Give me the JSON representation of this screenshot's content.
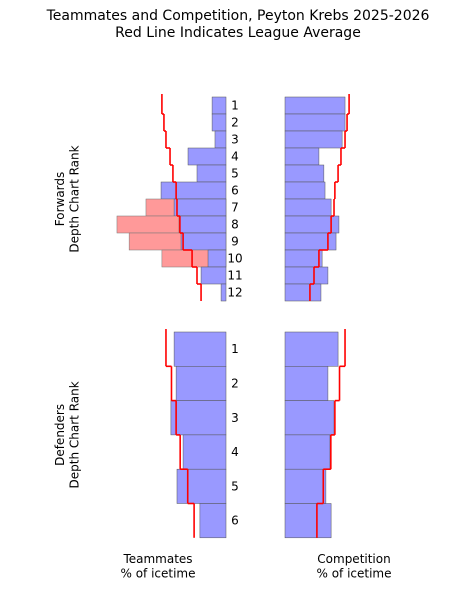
{
  "chart_data": {
    "type": "bar",
    "title": "Teammates and Competition, Peyton Krebs 2025-2026\nRed Line Indicates League Average",
    "x_labels": [
      "Teammates\n% of icetime",
      "Competition\n% of icetime"
    ],
    "xlim": [
      0,
      40
    ],
    "bar_color": "#9999ff",
    "highlight_color": "#ff9999",
    "average_color": "#ff0000",
    "groups": [
      {
        "ylabel": "Forwards\nDepth Chart Rank",
        "categories": [
          "1",
          "2",
          "3",
          "4",
          "5",
          "6",
          "7",
          "8",
          "9",
          "10",
          "11",
          "12"
        ],
        "teammates": [
          4.8,
          4.8,
          3.8,
          13.1,
          10.0,
          22.4,
          17.9,
          16.2,
          15.5,
          6.2,
          8.6,
          1.7
        ],
        "teammates_highlight": [
          null,
          null,
          null,
          null,
          null,
          null,
          27.6,
          37.6,
          33.4,
          22.1,
          null,
          null
        ],
        "competition": [
          20.7,
          20.7,
          19.7,
          11.7,
          13.4,
          13.8,
          15.9,
          18.6,
          17.6,
          12.8,
          14.8,
          12.4
        ],
        "league_average": [
          22.1,
          21.4,
          20.7,
          19.3,
          18.3,
          17.2,
          16.9,
          15.9,
          14.8,
          11.7,
          10.0,
          8.6
        ]
      },
      {
        "ylabel": "Defenders\nDepth Chart Rank",
        "categories": [
          "1",
          "2",
          "3",
          "4",
          "5",
          "6"
        ],
        "teammates": [
          17.9,
          17.2,
          19.0,
          14.8,
          16.9,
          9.0
        ],
        "teammates_highlight": [
          null,
          null,
          null,
          null,
          null,
          null
        ],
        "competition": [
          18.3,
          14.8,
          16.9,
          15.5,
          14.1,
          15.9
        ],
        "league_average": [
          20.7,
          18.8,
          17.2,
          15.8,
          13.2,
          11.0
        ]
      }
    ]
  }
}
